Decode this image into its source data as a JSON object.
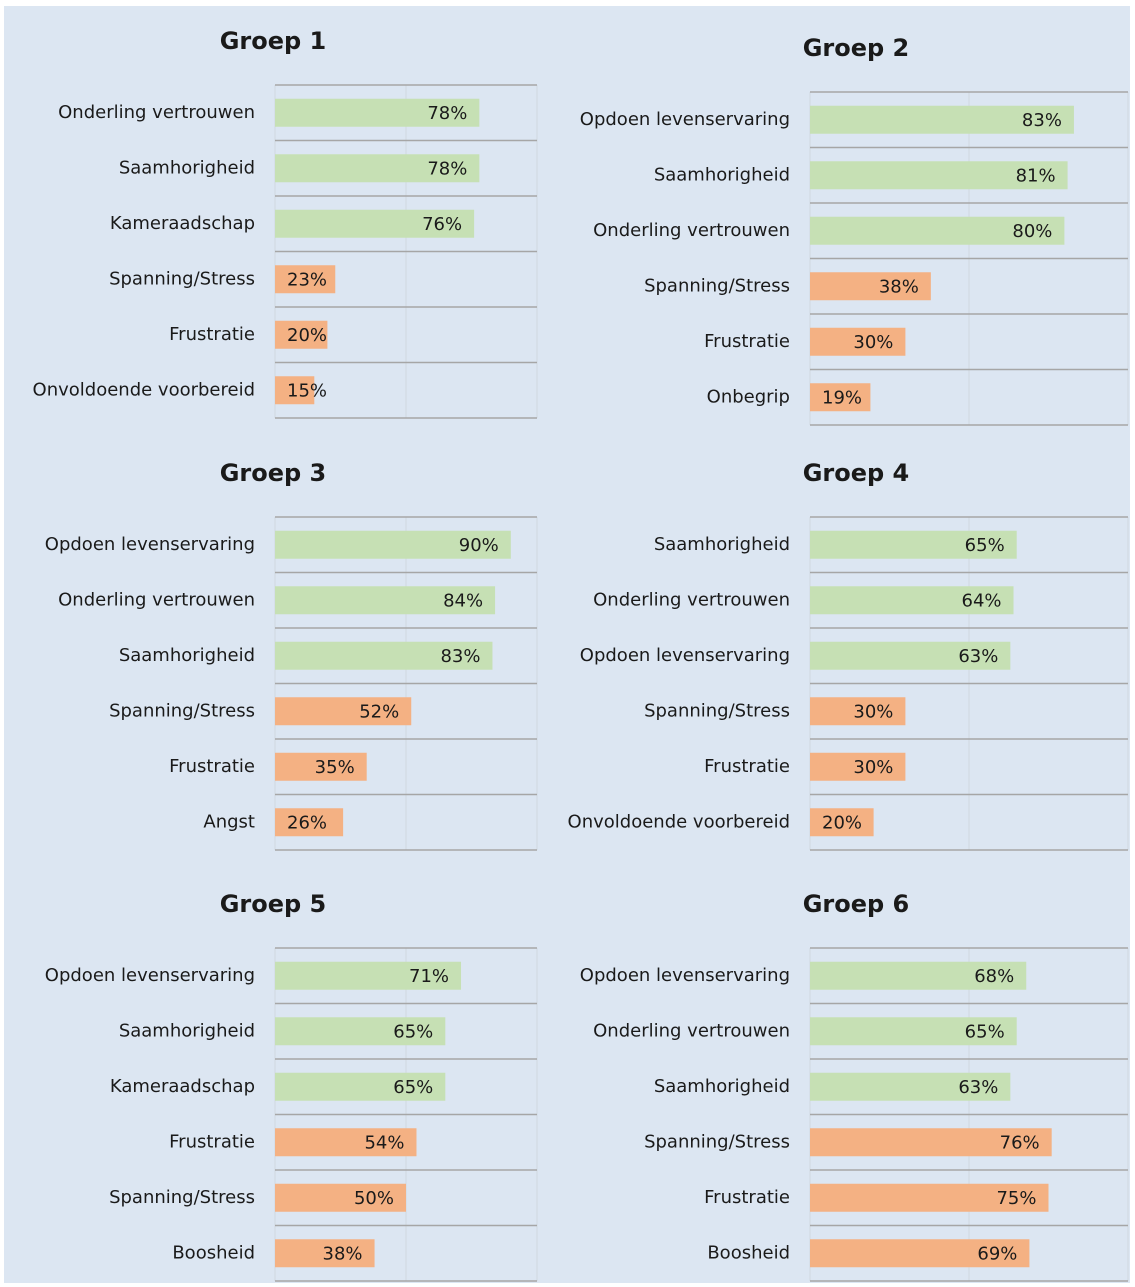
{
  "chart_data": [
    {
      "type": "bar",
      "orientation": "horizontal",
      "title": "Groep 1",
      "categories": [
        "Onderling vertrouwen",
        "Saamhorigheid",
        "Kameraadschap",
        "Spanning/Stress",
        "Frustratie",
        "Onvoldoende voorbereid"
      ],
      "values": [
        78,
        78,
        76,
        23,
        20,
        15
      ],
      "value_labels": [
        "78%",
        "78%",
        "76%",
        "23%",
        "20%",
        "15%"
      ],
      "colors": [
        "#c6e0b4",
        "#c6e0b4",
        "#c6e0b4",
        "#f4b183",
        "#f4b183",
        "#f4b183"
      ],
      "xlim": [
        0,
        100
      ],
      "xticks": [
        0,
        50,
        100
      ]
    },
    {
      "type": "bar",
      "orientation": "horizontal",
      "title": "Groep 2",
      "categories": [
        "Opdoen levenservaring",
        "Saamhorigheid",
        "Onderling vertrouwen",
        "Spanning/Stress",
        "Frustratie",
        "Onbegrip"
      ],
      "values": [
        83,
        81,
        80,
        38,
        30,
        19
      ],
      "value_labels": [
        "83%",
        "81%",
        "80%",
        "38%",
        "30%",
        "19%"
      ],
      "colors": [
        "#c6e0b4",
        "#c6e0b4",
        "#c6e0b4",
        "#f4b183",
        "#f4b183",
        "#f4b183"
      ],
      "xlim": [
        0,
        100
      ],
      "xticks": [
        0,
        50,
        100
      ]
    },
    {
      "type": "bar",
      "orientation": "horizontal",
      "title": "Groep 3",
      "categories": [
        "Opdoen levenservaring",
        "Onderling vertrouwen",
        "Saamhorigheid",
        "Spanning/Stress",
        "Frustratie",
        "Angst"
      ],
      "values": [
        90,
        84,
        83,
        52,
        35,
        26
      ],
      "value_labels": [
        "90%",
        "84%",
        "83%",
        "52%",
        "35%",
        "26%"
      ],
      "colors": [
        "#c6e0b4",
        "#c6e0b4",
        "#c6e0b4",
        "#f4b183",
        "#f4b183",
        "#f4b183"
      ],
      "xlim": [
        0,
        100
      ],
      "xticks": [
        0,
        50,
        100
      ]
    },
    {
      "type": "bar",
      "orientation": "horizontal",
      "title": "Groep 4",
      "categories": [
        "Saamhorigheid",
        "Onderling vertrouwen",
        "Opdoen levenservaring",
        "Spanning/Stress",
        "Frustratie",
        "Onvoldoende voorbereid"
      ],
      "values": [
        65,
        64,
        63,
        30,
        30,
        20
      ],
      "value_labels": [
        "65%",
        "64%",
        "63%",
        "30%",
        "30%",
        "20%"
      ],
      "colors": [
        "#c6e0b4",
        "#c6e0b4",
        "#c6e0b4",
        "#f4b183",
        "#f4b183",
        "#f4b183"
      ],
      "xlim": [
        0,
        100
      ],
      "xticks": [
        0,
        50,
        100
      ]
    },
    {
      "type": "bar",
      "orientation": "horizontal",
      "title": "Groep 5",
      "categories": [
        "Opdoen levenservaring",
        "Saamhorigheid",
        "Kameraadschap",
        "Frustratie",
        "Spanning/Stress",
        "Boosheid"
      ],
      "values": [
        71,
        65,
        65,
        54,
        50,
        38
      ],
      "value_labels": [
        "71%",
        "65%",
        "65%",
        "54%",
        "50%",
        "38%"
      ],
      "colors": [
        "#c6e0b4",
        "#c6e0b4",
        "#c6e0b4",
        "#f4b183",
        "#f4b183",
        "#f4b183"
      ],
      "xlim": [
        0,
        100
      ],
      "xticks": [
        0,
        50,
        100
      ]
    },
    {
      "type": "bar",
      "orientation": "horizontal",
      "title": "Groep 6",
      "categories": [
        "Opdoen levenservaring",
        "Onderling vertrouwen",
        "Saamhorigheid",
        "Spanning/Stress",
        "Frustratie",
        "Boosheid"
      ],
      "values": [
        68,
        65,
        63,
        76,
        75,
        69
      ],
      "value_labels": [
        "68%",
        "65%",
        "63%",
        "76%",
        "75%",
        "69%"
      ],
      "colors": [
        "#c6e0b4",
        "#c6e0b4",
        "#c6e0b4",
        "#f4b183",
        "#f4b183",
        "#f4b183"
      ],
      "xlim": [
        0,
        100
      ],
      "xticks": [
        0,
        50,
        100
      ]
    }
  ]
}
